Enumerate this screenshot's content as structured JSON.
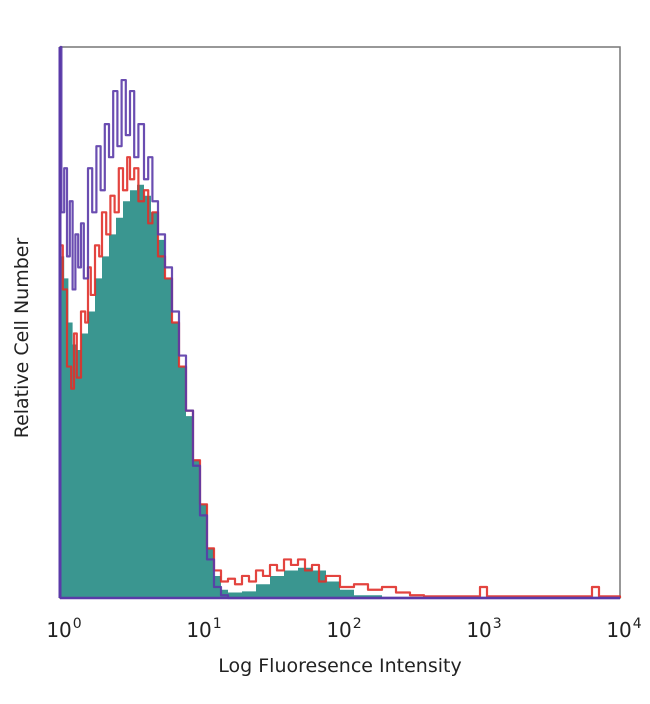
{
  "chart_data": {
    "type": "area",
    "title": "",
    "xlabel": "Log Fluoresence Intensity",
    "ylabel": "Relative Cell Number",
    "x_scale": "log10",
    "xlim_log10": [
      0,
      4
    ],
    "ylim": [
      0,
      100
    ],
    "x_ticks": [
      {
        "base": "10",
        "exp": "0"
      },
      {
        "base": "10",
        "exp": "1"
      },
      {
        "base": "10",
        "exp": "2"
      },
      {
        "base": "10",
        "exp": "3"
      },
      {
        "base": "10",
        "exp": "4"
      }
    ],
    "grid": false,
    "series": [
      {
        "name": "filled",
        "style": "fill",
        "color": "#3a9690",
        "x_log10": [
          0,
          0.03,
          0.06,
          0.09,
          0.12,
          0.15,
          0.2,
          0.25,
          0.3,
          0.35,
          0.4,
          0.45,
          0.5,
          0.55,
          0.6,
          0.65,
          0.7,
          0.75,
          0.8,
          0.85,
          0.9,
          0.95,
          1.0,
          1.05,
          1.1,
          1.15,
          1.2,
          1.3,
          1.4,
          1.5,
          1.6,
          1.7,
          1.8,
          1.9,
          2.0,
          2.1,
          2.3,
          4.0
        ],
        "y": [
          62,
          58,
          50,
          46,
          45,
          48,
          52,
          58,
          62,
          66,
          69,
          72,
          74,
          75,
          73,
          70,
          65,
          58,
          50,
          42,
          33,
          25,
          17,
          9,
          4,
          1.5,
          1,
          1.2,
          2.5,
          4,
          5,
          5.5,
          5,
          3,
          1.5,
          0.5,
          0.2,
          0
        ]
      },
      {
        "name": "red",
        "style": "line",
        "color": "#e0302a",
        "x_log10": [
          0,
          0.02,
          0.05,
          0.08,
          0.1,
          0.12,
          0.15,
          0.18,
          0.2,
          0.22,
          0.25,
          0.28,
          0.3,
          0.33,
          0.36,
          0.39,
          0.42,
          0.45,
          0.48,
          0.5,
          0.53,
          0.56,
          0.6,
          0.63,
          0.66,
          0.7,
          0.75,
          0.8,
          0.85,
          0.9,
          0.95,
          1.0,
          1.05,
          1.1,
          1.15,
          1.2,
          1.25,
          1.3,
          1.35,
          1.4,
          1.45,
          1.5,
          1.55,
          1.6,
          1.65,
          1.7,
          1.75,
          1.8,
          1.85,
          1.9,
          2.0,
          2.1,
          2.2,
          2.3,
          2.4,
          2.5,
          2.6,
          2.95,
          3.0,
          3.05,
          3.75,
          3.8,
          3.85,
          4.0
        ],
        "y": [
          64,
          56,
          42,
          38,
          48,
          40,
          52,
          50,
          60,
          55,
          64,
          62,
          70,
          66,
          73,
          70,
          78,
          74,
          80,
          76,
          78,
          72,
          74,
          68,
          70,
          62,
          58,
          50,
          42,
          34,
          25,
          17,
          9,
          5,
          3,
          3.5,
          2.5,
          4,
          3,
          5,
          4,
          6,
          5,
          7,
          6,
          7,
          5,
          6,
          3,
          4,
          2,
          2.5,
          1.5,
          2,
          1,
          0.5,
          0.3,
          0.3,
          2,
          0.3,
          0.3,
          2,
          0.3,
          0
        ]
      },
      {
        "name": "purple",
        "style": "line",
        "color": "#5a3aa8",
        "x_log10": [
          0,
          0.01,
          0.03,
          0.05,
          0.07,
          0.09,
          0.11,
          0.13,
          0.15,
          0.17,
          0.2,
          0.23,
          0.26,
          0.29,
          0.32,
          0.35,
          0.38,
          0.41,
          0.44,
          0.47,
          0.5,
          0.53,
          0.56,
          0.6,
          0.63,
          0.66,
          0.7,
          0.75,
          0.8,
          0.85,
          0.9,
          0.95,
          1.0,
          1.05,
          1.1,
          1.15,
          1.2,
          4.0
        ],
        "y": [
          100,
          70,
          78,
          62,
          72,
          56,
          66,
          60,
          68,
          58,
          78,
          70,
          82,
          74,
          86,
          80,
          92,
          82,
          94,
          84,
          92,
          80,
          86,
          76,
          80,
          72,
          66,
          60,
          52,
          44,
          34,
          24,
          15,
          7,
          2,
          0.5,
          0,
          0
        ]
      }
    ]
  }
}
